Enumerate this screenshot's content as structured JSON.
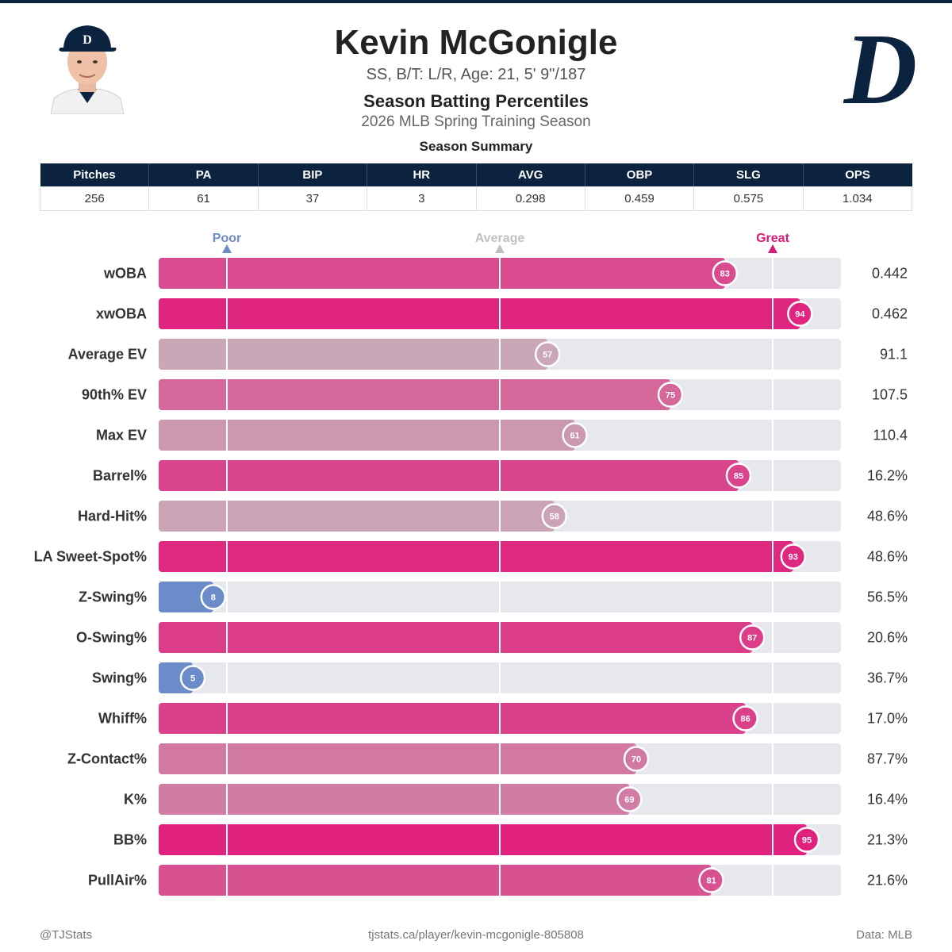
{
  "header": {
    "name": "Kevin McGonigle",
    "bio": "SS, B/T: L/R, Age: 21, 5' 9\"/187",
    "title": "Season Batting Percentiles",
    "subtitle": "2026 MLB Spring Training Season"
  },
  "summary": {
    "title": "Season Summary",
    "columns": [
      "Pitches",
      "PA",
      "BIP",
      "HR",
      "AVG",
      "OBP",
      "SLG",
      "OPS"
    ],
    "values": [
      "256",
      "61",
      "37",
      "3",
      "0.298",
      "0.459",
      "0.575",
      "1.034"
    ]
  },
  "chart_data": {
    "type": "bar",
    "orientation": "horizontal",
    "xlim": [
      0,
      100
    ],
    "reference_lines": [
      {
        "label": "Poor",
        "value": 10,
        "color": "#6b8cc9"
      },
      {
        "label": "Average",
        "value": 50,
        "color": "#c0c0c0"
      },
      {
        "label": "Great",
        "value": 90,
        "color": "#d81b78"
      }
    ],
    "categories": [
      "wOBA",
      "xwOBA",
      "Average EV",
      "90th% EV",
      "Max EV",
      "Barrel%",
      "Hard-Hit%",
      "LA Sweet-Spot%",
      "Z-Swing%",
      "O-Swing%",
      "Swing%",
      "Whiff%",
      "Z-Contact%",
      "K%",
      "BB%",
      "PullAir%"
    ],
    "percentiles": [
      83,
      94,
      57,
      75,
      61,
      85,
      58,
      93,
      8,
      87,
      5,
      86,
      70,
      69,
      95,
      81
    ],
    "stat_values": [
      "0.442",
      "0.462",
      "91.1",
      "107.5",
      "110.4",
      "16.2%",
      "48.6%",
      "48.6%",
      "56.5%",
      "20.6%",
      "36.7%",
      "17.0%",
      "87.7%",
      "16.4%",
      "21.3%",
      "21.6%"
    ],
    "colors": {
      "track": "#e7e7ee",
      "poor": "#6b8cc9",
      "great": "#e0217d",
      "neutral": "#c9adb9"
    }
  },
  "footer": {
    "handle": "@TJStats",
    "url": "tjstats.ca/player/kevin-mcgonigle-805808",
    "source": "Data: MLB"
  }
}
